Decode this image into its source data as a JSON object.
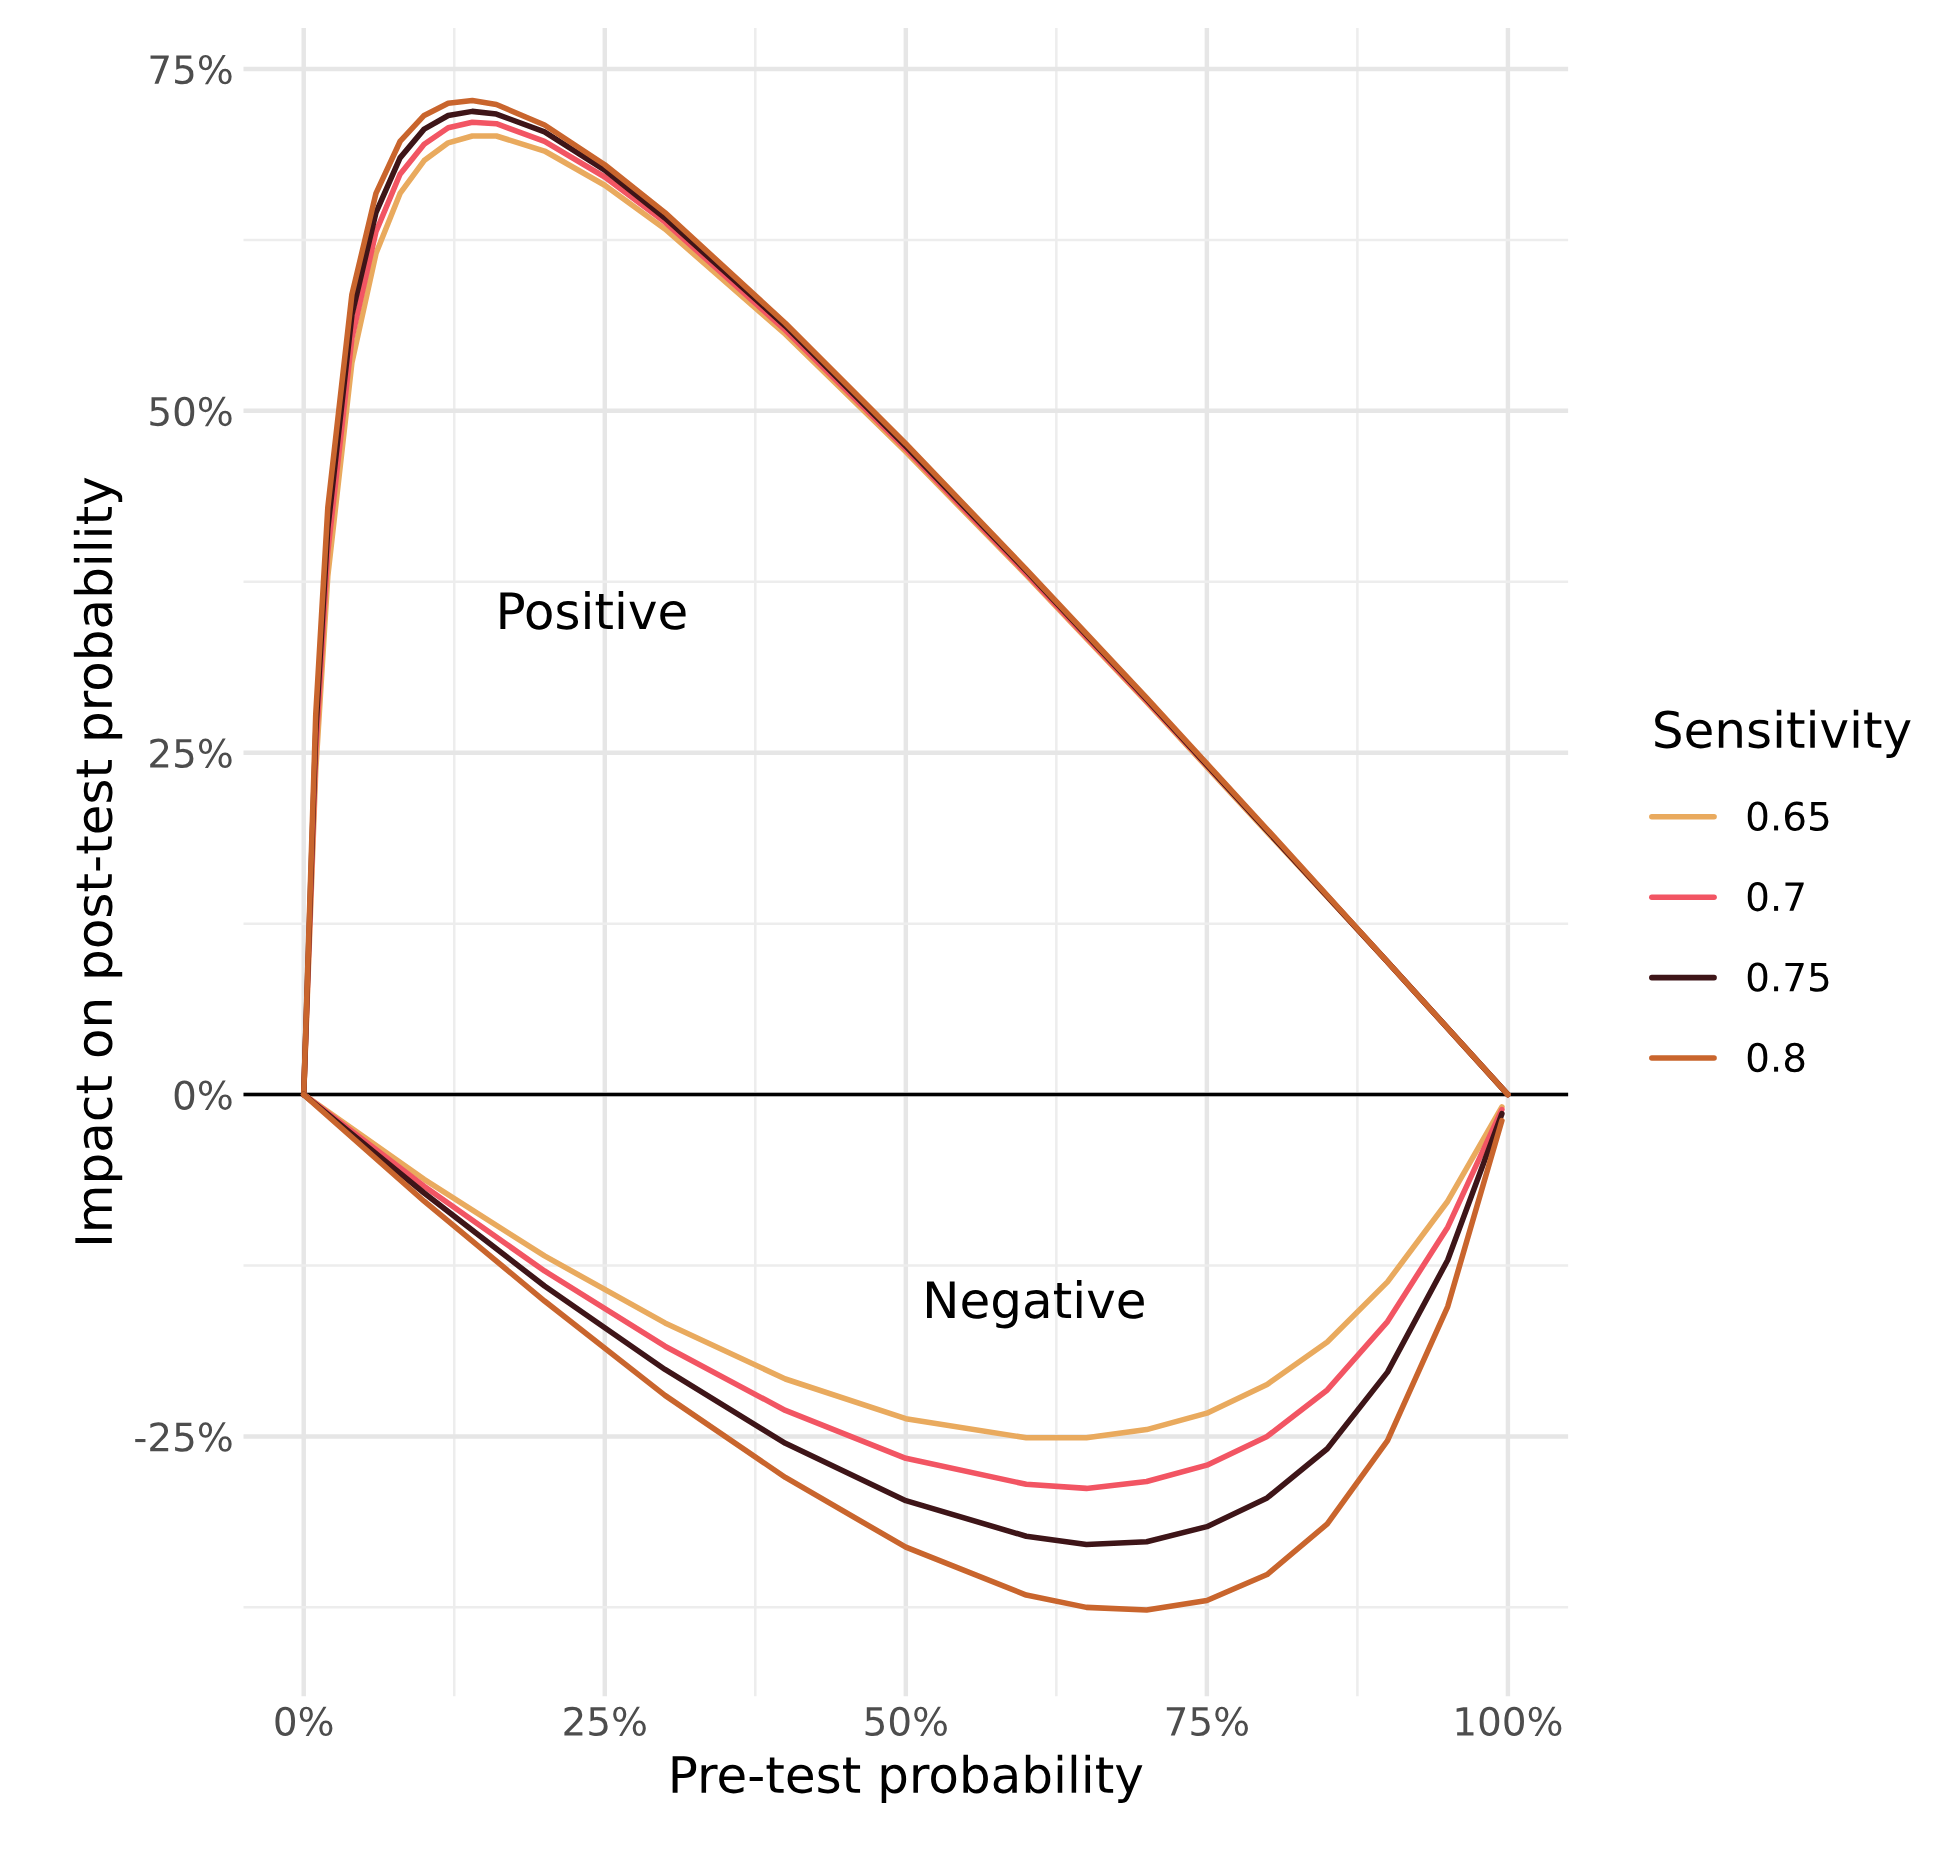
{
  "chart_data": {
    "type": "line",
    "xlabel": "Pre-test probability",
    "ylabel": "Impact on post-test probability",
    "legend_title": "Sensitivity",
    "legend": "right",
    "grid": true,
    "line_style": "solid",
    "xlim": [
      -5,
      105
    ],
    "ylim": [
      -44,
      78
    ],
    "xticks": [
      {
        "value": 0,
        "label": "0%"
      },
      {
        "value": 12.5,
        "label": null
      },
      {
        "value": 25,
        "label": "25%"
      },
      {
        "value": 37.5,
        "label": null
      },
      {
        "value": 50,
        "label": "50%"
      },
      {
        "value": 62.5,
        "label": null
      },
      {
        "value": 75,
        "label": "75%"
      },
      {
        "value": 87.5,
        "label": null
      },
      {
        "value": 100,
        "label": "100%"
      }
    ],
    "yticks": [
      {
        "value": -37.5,
        "label": null
      },
      {
        "value": -25,
        "label": "-25%"
      },
      {
        "value": -12.5,
        "label": null
      },
      {
        "value": 0,
        "label": "0%"
      },
      {
        "value": 12.5,
        "label": null
      },
      {
        "value": 25,
        "label": "25%"
      },
      {
        "value": 37.5,
        "label": null
      },
      {
        "value": 50,
        "label": "50%"
      },
      {
        "value": 62.5,
        "label": null
      },
      {
        "value": 75,
        "label": "75%"
      }
    ],
    "ref_lines": [
      {
        "axis": "y",
        "value": 0,
        "color": "#000000"
      }
    ],
    "annotations": [
      "Positive",
      "Negative"
    ],
    "series": [
      {
        "name": "0.65",
        "color": "#e9aa5e",
        "x": [
          0,
          1,
          2,
          4,
          6,
          8,
          10,
          12,
          14,
          16,
          20,
          25,
          30,
          40,
          50,
          60,
          70,
          80,
          90,
          100
        ],
        "values": [
          0,
          23.7,
          37.9,
          53.5,
          61.5,
          65.9,
          68.3,
          69.6,
          70.1,
          70.1,
          69.0,
          66.5,
          63.3,
          55.6,
          47.0,
          38.0,
          28.7,
          19.2,
          9.7,
          0
        ]
      },
      {
        "name": "0.7",
        "color": "#f25563",
        "x": [
          0,
          1,
          2,
          4,
          6,
          8,
          10,
          12,
          14,
          16,
          20,
          25,
          30,
          40,
          50,
          60,
          70,
          80,
          90,
          100
        ],
        "values": [
          0,
          25.1,
          39.7,
          55.3,
          63.1,
          67.3,
          69.5,
          70.7,
          71.1,
          71.0,
          69.7,
          67.1,
          63.8,
          55.9,
          47.2,
          38.1,
          28.8,
          19.3,
          9.7,
          0
        ]
      },
      {
        "name": "0.75",
        "color": "#3e1518",
        "x": [
          0,
          1,
          2,
          4,
          6,
          8,
          10,
          12,
          14,
          16,
          20,
          25,
          30,
          40,
          50,
          60,
          70,
          80,
          90,
          100
        ],
        "values": [
          0,
          26.5,
          41.4,
          57.0,
          64.5,
          68.5,
          70.6,
          71.6,
          71.9,
          71.7,
          70.4,
          67.6,
          64.1,
          56.2,
          47.4,
          38.3,
          28.9,
          19.3,
          9.7,
          0
        ]
      },
      {
        "name": "0.8",
        "color": "#c9652d",
        "x": [
          0,
          1,
          2,
          4,
          6,
          8,
          10,
          12,
          14,
          16,
          20,
          25,
          30,
          40,
          50,
          60,
          70,
          80,
          90,
          100
        ],
        "values": [
          0,
          27.8,
          42.9,
          58.5,
          65.9,
          69.7,
          71.6,
          72.5,
          72.7,
          72.4,
          70.9,
          68.0,
          64.5,
          56.4,
          47.6,
          38.4,
          29.0,
          19.4,
          9.7,
          0
        ]
      },
      {
        "color": "#e9aa5e",
        "x": [
          0,
          10,
          20,
          30,
          40,
          50,
          60,
          65,
          70,
          75,
          80,
          85,
          90,
          95,
          99.5
        ],
        "values": [
          0,
          -6.2,
          -11.8,
          -16.7,
          -20.8,
          -23.7,
          -25.1,
          -25.1,
          -24.5,
          -23.3,
          -21.2,
          -18.1,
          -13.7,
          -7.8,
          -0.9
        ]
      },
      {
        "color": "#f25563",
        "x": [
          0,
          10,
          20,
          30,
          40,
          50,
          60,
          65,
          70,
          75,
          80,
          85,
          90,
          95,
          99.5
        ],
        "values": [
          0,
          -6.7,
          -12.9,
          -18.4,
          -23.1,
          -26.6,
          -28.5,
          -28.8,
          -28.3,
          -27.1,
          -25.0,
          -21.6,
          -16.6,
          -9.7,
          -1.1
        ]
      },
      {
        "color": "#3e1518",
        "x": [
          0,
          10,
          20,
          30,
          40,
          50,
          60,
          65,
          70,
          75,
          80,
          85,
          90,
          95,
          99.5
        ],
        "values": [
          0,
          -7.2,
          -14.0,
          -20.1,
          -25.5,
          -29.7,
          -32.3,
          -32.9,
          -32.7,
          -31.6,
          -29.5,
          -25.9,
          -20.3,
          -12.1,
          -1.4
        ]
      },
      {
        "color": "#c9652d",
        "x": [
          0,
          10,
          20,
          30,
          40,
          50,
          60,
          65,
          70,
          75,
          80,
          85,
          90,
          95,
          99.5
        ],
        "values": [
          0,
          -7.8,
          -15.1,
          -22.0,
          -28.0,
          -33.1,
          -36.6,
          -37.5,
          -37.7,
          -37.0,
          -35.1,
          -31.4,
          -25.3,
          -15.5,
          -1.9
        ]
      }
    ]
  }
}
